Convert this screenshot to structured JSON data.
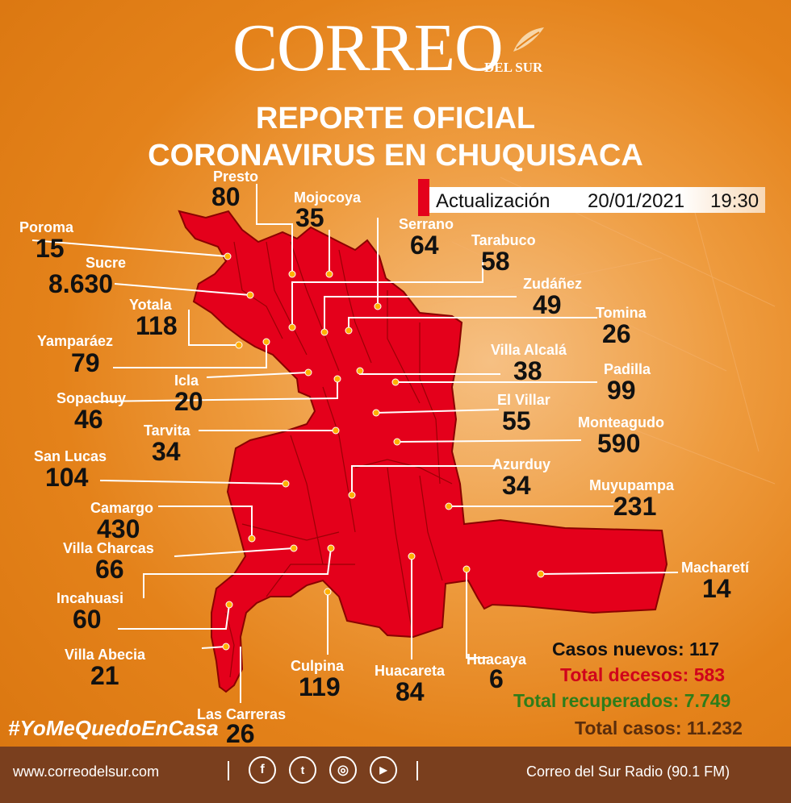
{
  "header": {
    "logo": "CORREO",
    "logo_sub": "DEL SUR",
    "title_line1": "REPORTE OFICIAL",
    "title_line2": "CORONAVIRUS EN CHUQUISACA"
  },
  "update": {
    "label": "Actualización",
    "date": "20/01/2021",
    "time": "19:30"
  },
  "colors": {
    "map_fill": "#e4001b",
    "background": "#e4821a",
    "footer": "#7a3f1e",
    "cases_new": "#111111",
    "deaths": "#d0021b",
    "recovered": "#2e7d1a",
    "total": "#5a2d0c"
  },
  "municipalities": [
    {
      "name": "Presto",
      "count": "80"
    },
    {
      "name": "Mojocoya",
      "count": "35"
    },
    {
      "name": "Serrano",
      "count": "64"
    },
    {
      "name": "Poroma",
      "count": "15"
    },
    {
      "name": "Tarabuco",
      "count": "58"
    },
    {
      "name": "Sucre",
      "count": "8.630"
    },
    {
      "name": "Zudáñez",
      "count": "49"
    },
    {
      "name": "Yotala",
      "count": "118"
    },
    {
      "name": "Tomina",
      "count": "26"
    },
    {
      "name": "Yamparáez",
      "count": "79"
    },
    {
      "name": "Villa Alcalá",
      "count": "38"
    },
    {
      "name": "Padilla",
      "count": "99"
    },
    {
      "name": "Icla",
      "count": "20"
    },
    {
      "name": "Sopachuy",
      "count": "46"
    },
    {
      "name": "El Villar",
      "count": "55"
    },
    {
      "name": "Monteagudo",
      "count": "590"
    },
    {
      "name": "Tarvita",
      "count": "34"
    },
    {
      "name": "San Lucas",
      "count": "104"
    },
    {
      "name": "Azurduy",
      "count": "34"
    },
    {
      "name": "Muyupampa",
      "count": "231"
    },
    {
      "name": "Camargo",
      "count": "430"
    },
    {
      "name": "Villa Charcas",
      "count": "66"
    },
    {
      "name": "Macharetí",
      "count": "14"
    },
    {
      "name": "Incahuasi",
      "count": "60"
    },
    {
      "name": "Villa Abecia",
      "count": "21"
    },
    {
      "name": "Culpina",
      "count": "119"
    },
    {
      "name": "Huacareta",
      "count": "84"
    },
    {
      "name": "Huacaya",
      "count": "6"
    },
    {
      "name": "Las Carreras",
      "count": "26"
    }
  ],
  "summary": {
    "new_cases": "Casos nuevos: 117",
    "deaths": "Total decesos: 583",
    "recovered": "Total recuperados: 7.749",
    "total": "Total casos: 11.232"
  },
  "hashtag": "#YoMeQuedoEnCasa",
  "footer": {
    "website": "www.correodelsur.com",
    "radio": "Correo del Sur Radio (90.1 FM)",
    "social": [
      {
        "icon": "facebook-icon",
        "glyph": "f"
      },
      {
        "icon": "twitter-icon",
        "glyph": "t"
      },
      {
        "icon": "instagram-icon",
        "glyph": "◎"
      },
      {
        "icon": "youtube-icon",
        "glyph": "▶"
      }
    ]
  }
}
